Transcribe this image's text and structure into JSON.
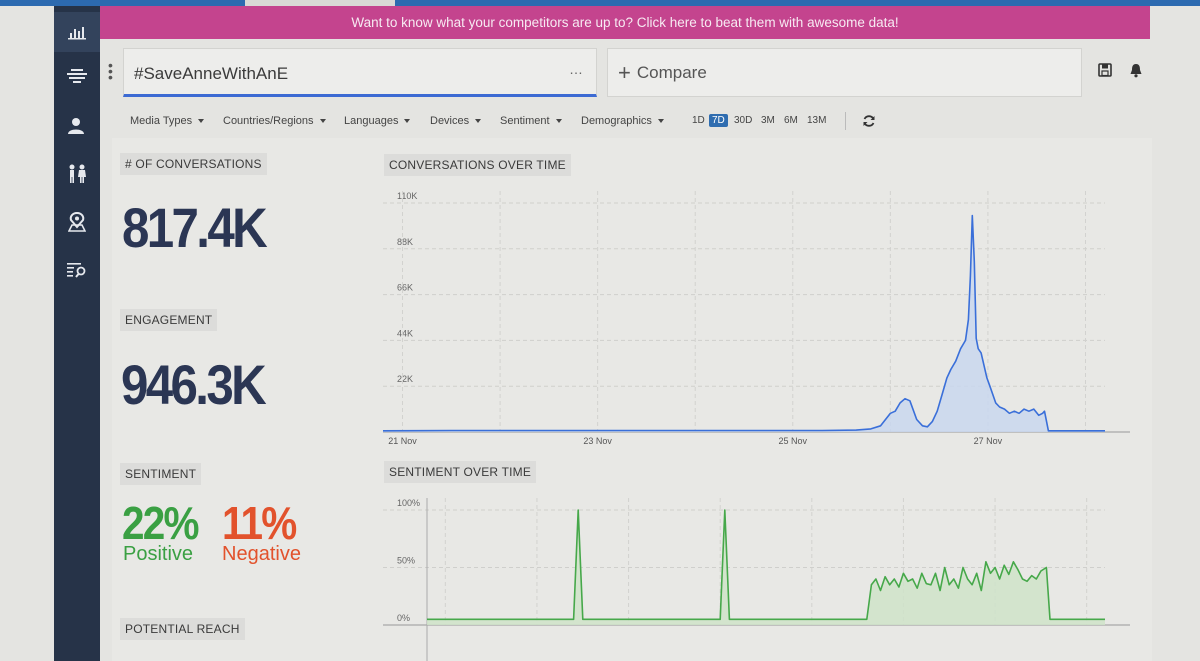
{
  "banner": {
    "text": "Want to know what your competitors are up to? Click here to beat them with awesome data!"
  },
  "sidebar": {
    "items": [
      {
        "name": "analytics",
        "icon": "bar-chart-icon"
      },
      {
        "name": "streams",
        "icon": "stacked-lines-icon"
      },
      {
        "name": "influencers",
        "icon": "user-icon"
      },
      {
        "name": "demographics",
        "icon": "people-icon"
      },
      {
        "name": "geography",
        "icon": "map-pin-icon"
      },
      {
        "name": "search",
        "icon": "list-search-icon"
      }
    ]
  },
  "query": {
    "text": "#SaveAnneWithAnE",
    "more": "…"
  },
  "compare": {
    "label": "Compare"
  },
  "filters": [
    {
      "label": "Media Types"
    },
    {
      "label": "Countries/Regions"
    },
    {
      "label": "Languages"
    },
    {
      "label": "Devices"
    },
    {
      "label": "Sentiment"
    },
    {
      "label": "Demographics"
    }
  ],
  "ranges": [
    {
      "label": "1D",
      "active": false
    },
    {
      "label": "7D",
      "active": true
    },
    {
      "label": "30D",
      "active": false
    },
    {
      "label": "3M",
      "active": false
    },
    {
      "label": "6M",
      "active": false
    },
    {
      "label": "13M",
      "active": false
    }
  ],
  "metrics": {
    "conversations": {
      "label": "# OF CONVERSATIONS",
      "value": "817.4K"
    },
    "engagement": {
      "label": "ENGAGEMENT",
      "value": "946.3K"
    },
    "sentiment": {
      "label": "SENTIMENT",
      "positive_pct": "22%",
      "positive_label": "Positive",
      "negative_pct": "11%",
      "negative_label": "Negative"
    },
    "reach": {
      "label": "POTENTIAL REACH"
    }
  },
  "colors": {
    "conversations_line": "#3a6fd9",
    "conversations_fill": "#c9d7ef",
    "sentiment_line": "#46a84a",
    "sentiment_fill": "#cfe3c9",
    "positive": "#3aa043",
    "negative": "#e2522c",
    "banner": "#c4448e",
    "sidebar": "#263348"
  },
  "chart_data": [
    {
      "type": "area",
      "title": "CONVERSATIONS OVER TIME",
      "y_ticks": [
        "110K",
        "88K",
        "66K",
        "44K",
        "22K"
      ],
      "x_ticks": [
        "21 Nov",
        "23 Nov",
        "25 Nov",
        "27 Nov"
      ],
      "ylim": [
        0,
        110000
      ],
      "x_unit": "days",
      "xlim": [
        20.8,
        28.2
      ],
      "x": [
        20.8,
        21.5,
        22.5,
        23.5,
        24.5,
        25.3,
        25.65,
        25.8,
        25.9,
        25.95,
        26.0,
        26.05,
        26.1,
        26.15,
        26.2,
        26.27,
        26.33,
        26.38,
        26.43,
        26.48,
        26.53,
        26.58,
        26.62,
        26.67,
        26.72,
        26.77,
        26.8,
        26.82,
        26.84,
        26.86,
        26.88,
        26.9,
        26.93,
        26.96,
        26.99,
        27.02,
        27.05,
        27.08,
        27.12,
        27.17,
        27.22,
        27.27,
        27.32,
        27.37,
        27.42,
        27.47,
        27.52,
        27.56,
        27.58,
        27.62,
        27.8,
        28.2
      ],
      "values": [
        600,
        700,
        700,
        700,
        700,
        700,
        900,
        1500,
        3000,
        6000,
        9000,
        10000,
        14000,
        16000,
        15000,
        6000,
        3000,
        2500,
        5000,
        10000,
        18000,
        26000,
        30000,
        34000,
        40000,
        44000,
        54000,
        75000,
        104000,
        82000,
        45000,
        40000,
        38000,
        32000,
        26000,
        22000,
        18000,
        14000,
        12000,
        11000,
        9000,
        10000,
        9000,
        11000,
        10000,
        11000,
        8000,
        9000,
        10000,
        600,
        600,
        600
      ],
      "grid": true
    },
    {
      "type": "area",
      "title": "SENTIMENT OVER TIME",
      "y_ticks": [
        "100%",
        "50%",
        "0%"
      ],
      "ylim": [
        0,
        100
      ],
      "x_unit": "days",
      "xlim": [
        20.8,
        28.2
      ],
      "x": [
        20.8,
        22.35,
        22.4,
        22.45,
        22.5,
        23.0,
        23.6,
        24.0,
        24.05,
        24.1,
        24.15,
        25.6,
        25.65,
        25.7,
        25.75,
        25.8,
        25.85,
        25.9,
        25.95,
        26.0,
        26.05,
        26.1,
        26.15,
        26.2,
        26.25,
        26.3,
        26.35,
        26.4,
        26.45,
        26.5,
        26.55,
        26.6,
        26.65,
        26.7,
        26.75,
        26.8,
        26.85,
        26.9,
        26.95,
        27.0,
        27.05,
        27.1,
        27.15,
        27.2,
        27.25,
        27.3,
        27.35,
        27.4,
        27.45,
        27.5,
        27.56,
        27.6,
        28.2
      ],
      "values": [
        5,
        5,
        5,
        100,
        5,
        5,
        5,
        5,
        100,
        5,
        5,
        5,
        35,
        40,
        30,
        42,
        35,
        40,
        33,
        45,
        38,
        40,
        32,
        45,
        36,
        35,
        45,
        30,
        50,
        35,
        40,
        32,
        50,
        40,
        35,
        45,
        30,
        55,
        45,
        50,
        40,
        52,
        44,
        55,
        48,
        40,
        38,
        43,
        40,
        47,
        50,
        5,
        5
      ],
      "grid": true
    }
  ]
}
